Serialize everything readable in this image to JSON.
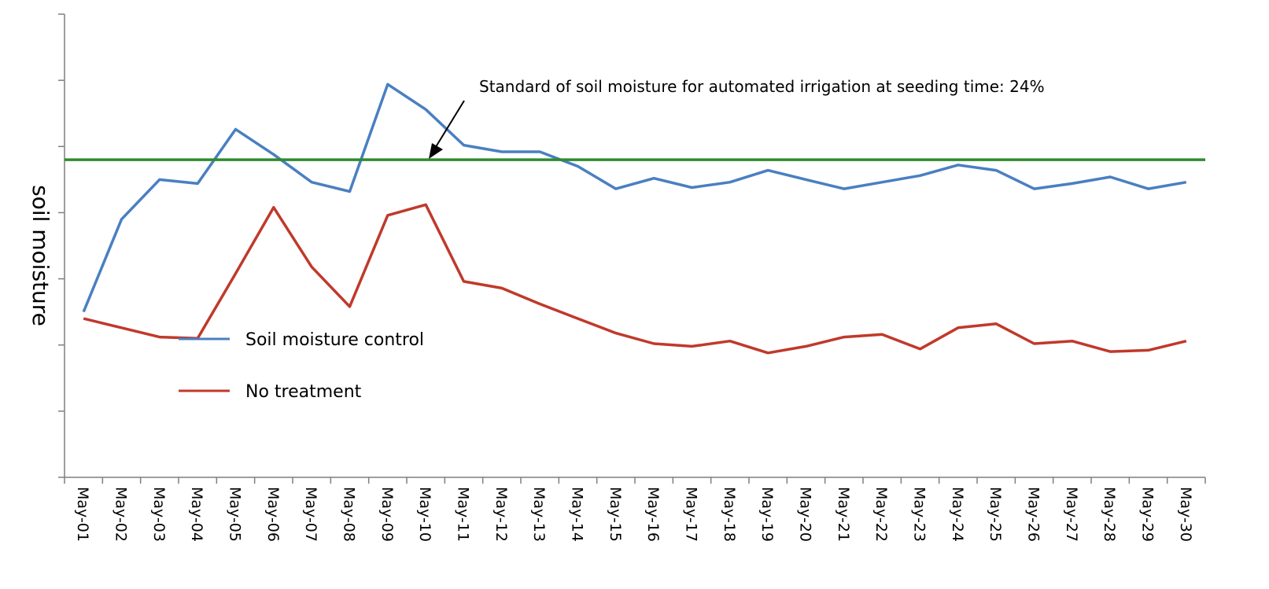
{
  "chart_data": {
    "type": "line",
    "ylabel": "soil moisture",
    "xlabel": "",
    "categories": [
      "May-01",
      "May-02",
      "May-03",
      "May-04",
      "May-05",
      "May-06",
      "May-07",
      "May-08",
      "May-09",
      "May-10",
      "May-11",
      "May-12",
      "May-13",
      "May-14",
      "May-15",
      "May-16",
      "May-17",
      "May-18",
      "May-19",
      "May-20",
      "May-21",
      "May-22",
      "May-23",
      "May-24",
      "May-25",
      "May-26",
      "May-27",
      "May-28",
      "May-29",
      "May-30"
    ],
    "grid": false,
    "legend_position": "bottom-left",
    "colors": {
      "control": "#4a7fc1",
      "no_treatment": "#c0392b",
      "standard": "#2e8b2e"
    },
    "series": [
      {
        "name": "Soil moisture control",
        "values": [
          12.5,
          19.5,
          22.5,
          22.2,
          26.3,
          24.4,
          22.3,
          21.6,
          29.7,
          27.8,
          25.1,
          24.6,
          24.6,
          23.5,
          21.8,
          22.6,
          21.9,
          22.3,
          23.2,
          22.5,
          21.8,
          22.3,
          22.8,
          23.6,
          23.2,
          21.8,
          22.2,
          22.7,
          21.8,
          22.3
        ]
      },
      {
        "name": "No treatment",
        "values": [
          12.0,
          11.3,
          10.6,
          10.5,
          15.4,
          20.4,
          15.9,
          12.9,
          19.8,
          20.6,
          14.8,
          14.3,
          13.1,
          12.0,
          10.9,
          10.1,
          9.9,
          10.3,
          9.4,
          9.9,
          10.6,
          10.8,
          9.7,
          11.3,
          11.6,
          10.1,
          10.3,
          9.5,
          9.6,
          10.3
        ]
      }
    ],
    "reference_line": {
      "value": 24,
      "label": "Standard of soil moisture for automated irrigation at seeding time: 24%"
    },
    "ylim": [
      0,
      35
    ],
    "y_ticks": [
      0,
      5,
      10,
      15,
      20,
      25,
      30,
      35
    ]
  }
}
